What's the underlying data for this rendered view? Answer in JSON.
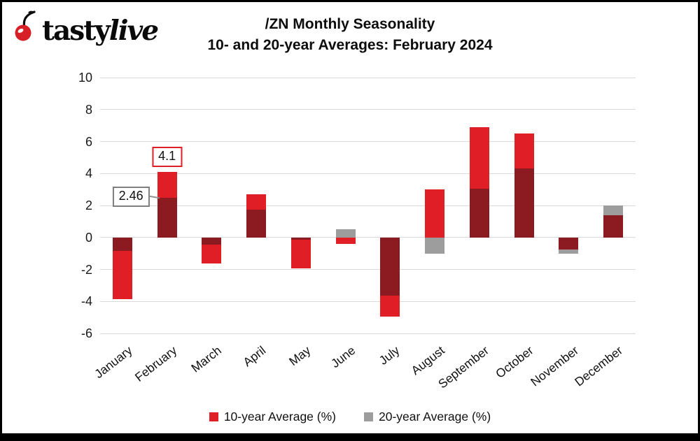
{
  "logo": {
    "brand_tasty": "tasty",
    "brand_live": "live",
    "icon": "cherry-icon"
  },
  "title": {
    "line1": "/ZN Monthly Seasonality",
    "line2": "10- and 20-year Averages: February 2024"
  },
  "legend": [
    {
      "label": "10-year Average (%)",
      "color": "#e01e26"
    },
    {
      "label": "20-year Average (%)",
      "color": "#9d9d9d"
    }
  ],
  "chart_data": {
    "type": "bar",
    "title": "/ZN Monthly Seasonality",
    "subtitle": "10- and 20-year Averages: February 2024",
    "categories": [
      "January",
      "February",
      "March",
      "April",
      "May",
      "June",
      "July",
      "August",
      "September",
      "October",
      "November",
      "December"
    ],
    "series": [
      {
        "name": "10-year Average (%)",
        "color": "#e01e26",
        "values": [
          -3.85,
          4.1,
          -1.65,
          2.7,
          -1.95,
          -0.4,
          -4.95,
          3.0,
          6.9,
          6.5,
          -0.75,
          1.4
        ]
      },
      {
        "name": "20-year Average (%)",
        "color": "#9d9d9d",
        "values": [
          -0.85,
          2.46,
          -0.45,
          1.75,
          -0.15,
          0.5,
          -3.65,
          -1.0,
          3.05,
          4.3,
          -1.0,
          2.0
        ]
      }
    ],
    "overlap_color": "#8b1b20",
    "grid_color": "#d9d9d9",
    "ylim": [
      -6,
      10
    ],
    "yticks": [
      10,
      8,
      6,
      4,
      2,
      0,
      -2,
      -4,
      -6
    ],
    "grid": true,
    "legend_position": "bottom",
    "annotations": [
      {
        "text": "4.1",
        "month": "February",
        "series": "10-year Average (%)",
        "value": 4.1,
        "box_color": "#e01e26",
        "placement": "above"
      },
      {
        "text": "2.46",
        "month": "February",
        "series": "20-year Average (%)",
        "value": 2.46,
        "box_color": "#7f7f7f",
        "placement": "left"
      }
    ]
  }
}
